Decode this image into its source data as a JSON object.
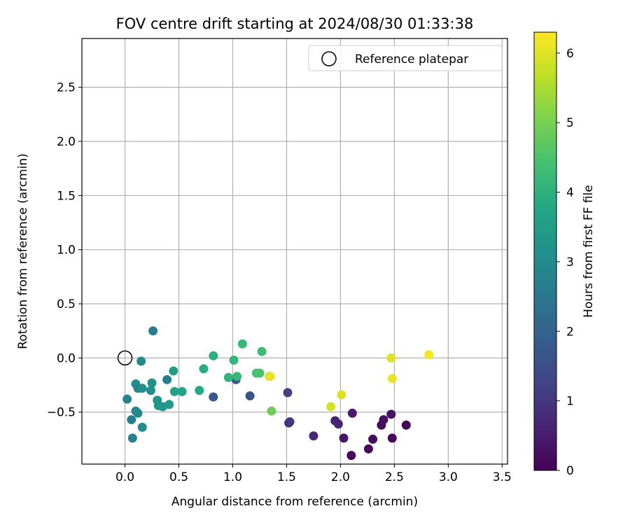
{
  "chart_data": {
    "type": "scatter",
    "title": "FOV centre drift starting at 2024/08/30 01:33:38",
    "xlabel": "Angular distance from reference (arcmin)",
    "ylabel": "Rotation from reference (arcmin)",
    "xlim": [
      -0.4,
      3.55
    ],
    "ylim": [
      -0.98,
      2.95
    ],
    "xticks": [
      0.0,
      0.5,
      1.0,
      1.5,
      2.0,
      2.5,
      3.0,
      3.5
    ],
    "xtick_labels": [
      "0.0",
      "0.5",
      "1.0",
      "1.5",
      "2.0",
      "2.5",
      "3.0",
      "3.5"
    ],
    "yticks": [
      -0.5,
      0.0,
      0.5,
      1.0,
      1.5,
      2.0,
      2.5
    ],
    "ytick_labels": [
      "−0.5",
      "0.0",
      "0.5",
      "1.0",
      "1.5",
      "2.0",
      "2.5"
    ],
    "grid": true,
    "legend": {
      "placement": "top-right",
      "entries": [
        {
          "label": "Reference platepar",
          "marker": "open-circle"
        }
      ]
    },
    "reference_point": {
      "x": 0.0,
      "y": 0.0
    },
    "colorbar": {
      "label": "Hours from first FF file",
      "colormap": "viridis",
      "range": [
        0,
        6.3
      ],
      "ticks": [
        0,
        1,
        2,
        3,
        4,
        5,
        6
      ],
      "tick_labels": [
        "0",
        "1",
        "2",
        "3",
        "4",
        "5",
        "6"
      ]
    },
    "points": [
      {
        "x": 2.1,
        "y": -0.9,
        "c": 0.1
      },
      {
        "x": 2.26,
        "y": -0.84,
        "c": 0.15
      },
      {
        "x": 2.3,
        "y": -0.75,
        "c": 0.2
      },
      {
        "x": 2.38,
        "y": -0.62,
        "c": 0.2
      },
      {
        "x": 2.4,
        "y": -0.57,
        "c": 0.25
      },
      {
        "x": 2.47,
        "y": -0.52,
        "c": 0.3
      },
      {
        "x": 2.48,
        "y": -0.74,
        "c": 0.1
      },
      {
        "x": 2.61,
        "y": -0.62,
        "c": 0.05
      },
      {
        "x": 2.03,
        "y": -0.74,
        "c": 0.4
      },
      {
        "x": 2.11,
        "y": -0.51,
        "c": 0.45
      },
      {
        "x": 1.95,
        "y": -0.58,
        "c": 0.55
      },
      {
        "x": 1.98,
        "y": -0.61,
        "c": 0.6
      },
      {
        "x": 1.75,
        "y": -0.72,
        "c": 0.7
      },
      {
        "x": 1.52,
        "y": -0.6,
        "c": 0.9
      },
      {
        "x": 1.53,
        "y": -0.59,
        "c": 1.0
      },
      {
        "x": 1.51,
        "y": -0.32,
        "c": 1.2
      },
      {
        "x": 1.16,
        "y": -0.35,
        "c": 1.6
      },
      {
        "x": 1.03,
        "y": -0.2,
        "c": 1.7
      },
      {
        "x": 0.82,
        "y": -0.36,
        "c": 1.7
      },
      {
        "x": 0.39,
        "y": -0.2,
        "c": 2.6
      },
      {
        "x": 0.26,
        "y": 0.25,
        "c": 2.6
      },
      {
        "x": 0.06,
        "y": -0.57,
        "c": 2.7
      },
      {
        "x": 0.02,
        "y": -0.38,
        "c": 2.8
      },
      {
        "x": 0.07,
        "y": -0.74,
        "c": 2.8
      },
      {
        "x": 0.1,
        "y": -0.49,
        "c": 2.9
      },
      {
        "x": 0.12,
        "y": -0.51,
        "c": 2.9
      },
      {
        "x": 0.16,
        "y": -0.64,
        "c": 3.0
      },
      {
        "x": 0.12,
        "y": -0.28,
        "c": 2.9
      },
      {
        "x": 0.1,
        "y": -0.24,
        "c": 3.0
      },
      {
        "x": 0.15,
        "y": -0.03,
        "c": 3.0
      },
      {
        "x": 0.16,
        "y": -0.28,
        "c": 3.1
      },
      {
        "x": 0.24,
        "y": -0.3,
        "c": 3.1
      },
      {
        "x": 0.25,
        "y": -0.23,
        "c": 3.2
      },
      {
        "x": 0.3,
        "y": -0.39,
        "c": 3.2
      },
      {
        "x": 0.31,
        "y": -0.44,
        "c": 3.3
      },
      {
        "x": 0.35,
        "y": -0.45,
        "c": 3.3
      },
      {
        "x": 0.41,
        "y": -0.43,
        "c": 3.4
      },
      {
        "x": 0.45,
        "y": -0.12,
        "c": 3.5
      },
      {
        "x": 0.46,
        "y": -0.31,
        "c": 3.6
      },
      {
        "x": 0.53,
        "y": -0.31,
        "c": 3.7
      },
      {
        "x": 0.69,
        "y": -0.3,
        "c": 3.8
      },
      {
        "x": 0.73,
        "y": -0.1,
        "c": 3.9
      },
      {
        "x": 0.82,
        "y": 0.02,
        "c": 4.0
      },
      {
        "x": 0.96,
        "y": -0.18,
        "c": 4.1
      },
      {
        "x": 1.01,
        "y": -0.02,
        "c": 4.1
      },
      {
        "x": 1.04,
        "y": -0.17,
        "c": 4.2
      },
      {
        "x": 1.09,
        "y": 0.13,
        "c": 4.2
      },
      {
        "x": 1.22,
        "y": -0.14,
        "c": 4.4
      },
      {
        "x": 1.25,
        "y": -0.14,
        "c": 4.5
      },
      {
        "x": 1.27,
        "y": 0.06,
        "c": 4.3
      },
      {
        "x": 1.36,
        "y": -0.49,
        "c": 4.9
      },
      {
        "x": 1.34,
        "y": -0.17,
        "c": 5.9
      },
      {
        "x": 1.35,
        "y": -0.17,
        "c": 6.1
      },
      {
        "x": 1.91,
        "y": -0.45,
        "c": 5.9
      },
      {
        "x": 2.01,
        "y": -0.34,
        "c": 6.0
      },
      {
        "x": 2.47,
        "y": 0.0,
        "c": 6.0
      },
      {
        "x": 2.48,
        "y": -0.19,
        "c": 6.1
      },
      {
        "x": 2.82,
        "y": 0.03,
        "c": 6.2
      }
    ]
  }
}
